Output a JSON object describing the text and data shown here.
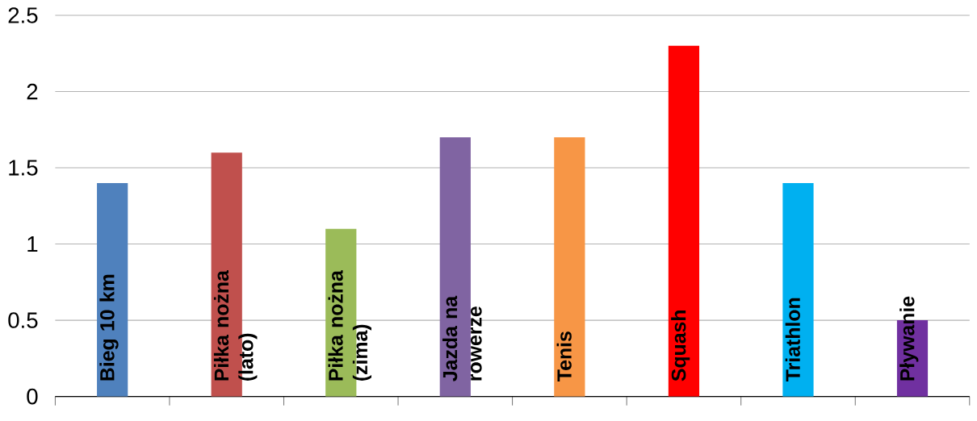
{
  "chart_data": {
    "type": "bar",
    "categories": [
      "Bieg 10 km",
      "Piłka nożna (lato)",
      "Piłka nożna (zima)",
      "Jazda na rowerze",
      "Tenis",
      "Squash",
      "Triathlon",
      "Pływanie"
    ],
    "values": [
      1.4,
      1.6,
      1.1,
      1.7,
      1.7,
      2.3,
      1.4,
      0.5
    ],
    "colors": [
      "#4f81bd",
      "#c0504d",
      "#9bbb59",
      "#8064a2",
      "#f79646",
      "#ff0000",
      "#00b0f0",
      "#7030a0"
    ],
    "ylim": [
      0,
      2.5
    ],
    "yticks": [
      0,
      0.5,
      1,
      1.5,
      2,
      2.5
    ],
    "grid": "y"
  }
}
